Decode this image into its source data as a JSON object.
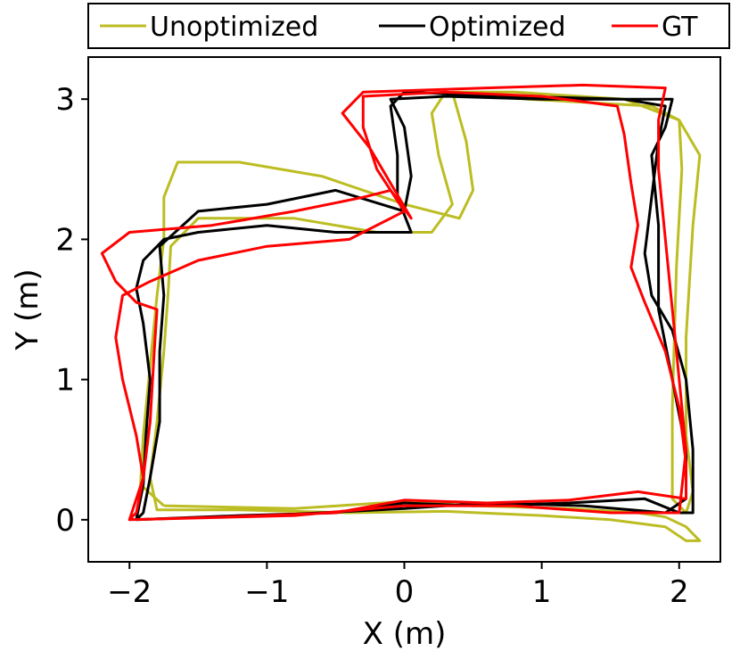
{
  "chart_data": {
    "type": "line",
    "title": "",
    "xlabel": "X (m)",
    "ylabel": "Y (m)",
    "xlim": [
      -2.3,
      2.3
    ],
    "ylim": [
      -0.3,
      3.3
    ],
    "xticks": [
      -2,
      -1,
      0,
      1,
      2
    ],
    "yticks": [
      0,
      1,
      2,
      3
    ],
    "xtick_labels": [
      "−2",
      "−1",
      "0",
      "1",
      "2"
    ],
    "ytick_labels": [
      "0",
      "1",
      "2",
      "3"
    ],
    "grid": false,
    "legend_position": "top",
    "series": [
      {
        "name": "Unoptimized",
        "color": "#bcbd22",
        "points": [
          [
            -1.75,
            0.1
          ],
          [
            -0.8,
            0.08
          ],
          [
            0.0,
            0.13
          ],
          [
            0.5,
            0.1
          ],
          [
            1.2,
            0.08
          ],
          [
            1.7,
            0.05
          ],
          [
            1.9,
            0.02
          ],
          [
            2.05,
            -0.05
          ],
          [
            2.15,
            -0.15
          ],
          [
            2.05,
            -0.15
          ],
          [
            1.9,
            -0.05
          ],
          [
            1.5,
            0.0
          ],
          [
            1.0,
            0.03
          ],
          [
            0.3,
            0.06
          ],
          [
            -0.4,
            0.05
          ],
          [
            -1.2,
            0.07
          ],
          [
            -1.8,
            0.07
          ],
          [
            -1.85,
            0.3
          ],
          [
            -1.8,
            0.7
          ],
          [
            -1.75,
            1.2
          ],
          [
            -1.72,
            1.6
          ],
          [
            -1.7,
            1.95
          ],
          [
            -1.5,
            2.15
          ],
          [
            -0.8,
            2.15
          ],
          [
            -0.2,
            2.05
          ],
          [
            0.2,
            2.05
          ],
          [
            0.35,
            2.25
          ],
          [
            0.25,
            2.6
          ],
          [
            0.2,
            2.9
          ],
          [
            0.3,
            3.05
          ],
          [
            0.9,
            3.0
          ],
          [
            1.8,
            2.95
          ],
          [
            2.0,
            2.85
          ],
          [
            2.15,
            2.6
          ],
          [
            2.1,
            2.1
          ],
          [
            2.05,
            1.3
          ],
          [
            2.05,
            0.6
          ],
          [
            2.1,
            0.2
          ],
          [
            2.05,
            0.05
          ],
          [
            1.95,
            0.15
          ],
          [
            1.95,
            0.8
          ],
          [
            1.98,
            1.8
          ],
          [
            2.02,
            2.5
          ],
          [
            2.0,
            2.85
          ],
          [
            1.6,
            3.0
          ],
          [
            0.8,
            3.05
          ],
          [
            0.35,
            3.05
          ],
          [
            0.45,
            2.7
          ],
          [
            0.5,
            2.35
          ],
          [
            0.4,
            2.15
          ],
          [
            0.0,
            2.25
          ],
          [
            -0.6,
            2.45
          ],
          [
            -1.2,
            2.55
          ],
          [
            -1.65,
            2.55
          ],
          [
            -1.75,
            2.3
          ],
          [
            -1.75,
            2.0
          ],
          [
            -1.8,
            1.6
          ],
          [
            -1.85,
            1.1
          ],
          [
            -1.9,
            0.6
          ],
          [
            -1.92,
            0.25
          ],
          [
            -1.75,
            0.1
          ]
        ]
      },
      {
        "name": "Optimized",
        "color": "#000000",
        "points": [
          [
            -1.95,
            0.0
          ],
          [
            -1.2,
            0.03
          ],
          [
            -0.5,
            0.05
          ],
          [
            0.0,
            0.12
          ],
          [
            0.5,
            0.1
          ],
          [
            1.2,
            0.12
          ],
          [
            1.75,
            0.15
          ],
          [
            2.0,
            0.05
          ],
          [
            2.1,
            0.05
          ],
          [
            2.1,
            0.5
          ],
          [
            2.05,
            1.0
          ],
          [
            1.95,
            1.35
          ],
          [
            1.8,
            1.6
          ],
          [
            1.75,
            1.9
          ],
          [
            1.8,
            2.3
          ],
          [
            1.85,
            2.7
          ],
          [
            1.9,
            2.95
          ],
          [
            1.6,
            3.0
          ],
          [
            0.8,
            3.02
          ],
          [
            0.0,
            3.05
          ],
          [
            -0.1,
            2.95
          ],
          [
            -0.05,
            2.6
          ],
          [
            -0.05,
            2.3
          ],
          [
            0.05,
            2.05
          ],
          [
            -0.5,
            2.05
          ],
          [
            -1.0,
            2.1
          ],
          [
            -1.5,
            2.05
          ],
          [
            -1.75,
            2.0
          ],
          [
            -1.9,
            1.85
          ],
          [
            -1.95,
            1.65
          ],
          [
            -1.9,
            1.4
          ],
          [
            -1.85,
            1.0
          ],
          [
            -1.88,
            0.6
          ],
          [
            -1.9,
            0.25
          ],
          [
            -1.95,
            0.0
          ],
          [
            -1.9,
            0.05
          ],
          [
            -1.85,
            0.3
          ],
          [
            -1.78,
            0.7
          ],
          [
            -1.78,
            1.2
          ],
          [
            -1.75,
            1.6
          ],
          [
            -1.78,
            1.95
          ],
          [
            -1.5,
            2.2
          ],
          [
            -1.0,
            2.25
          ],
          [
            -0.5,
            2.35
          ],
          [
            0.0,
            2.2
          ],
          [
            0.05,
            2.45
          ],
          [
            0.0,
            2.8
          ],
          [
            -0.1,
            3.0
          ],
          [
            0.3,
            3.02
          ],
          [
            1.0,
            3.0
          ],
          [
            1.95,
            3.0
          ],
          [
            1.9,
            2.8
          ],
          [
            1.8,
            2.6
          ],
          [
            1.85,
            2.1
          ],
          [
            1.85,
            1.5
          ],
          [
            1.95,
            1.0
          ],
          [
            2.05,
            0.5
          ],
          [
            2.05,
            0.15
          ],
          [
            1.9,
            0.05
          ],
          [
            1.3,
            0.1
          ],
          [
            0.6,
            0.12
          ],
          [
            0.0,
            0.08
          ],
          [
            -0.8,
            0.04
          ],
          [
            -1.95,
            0.0
          ]
        ]
      },
      {
        "name": "GT",
        "color": "#ff0000",
        "points": [
          [
            -2.0,
            0.0
          ],
          [
            -1.3,
            0.02
          ],
          [
            -0.5,
            0.05
          ],
          [
            0.0,
            0.14
          ],
          [
            0.6,
            0.12
          ],
          [
            1.2,
            0.14
          ],
          [
            1.7,
            0.2
          ],
          [
            2.05,
            0.15
          ],
          [
            2.05,
            0.4
          ],
          [
            2.0,
            0.8
          ],
          [
            1.9,
            1.2
          ],
          [
            1.75,
            1.55
          ],
          [
            1.65,
            1.8
          ],
          [
            1.7,
            2.1
          ],
          [
            1.65,
            2.4
          ],
          [
            1.6,
            2.75
          ],
          [
            1.55,
            2.95
          ],
          [
            1.0,
            3.02
          ],
          [
            0.3,
            3.05
          ],
          [
            -0.3,
            3.02
          ],
          [
            -0.3,
            2.8
          ],
          [
            -0.2,
            2.5
          ],
          [
            0.0,
            2.2
          ],
          [
            -0.4,
            2.0
          ],
          [
            -1.0,
            1.95
          ],
          [
            -1.5,
            1.85
          ],
          [
            -1.85,
            1.7
          ],
          [
            -2.05,
            1.6
          ],
          [
            -2.1,
            1.3
          ],
          [
            -2.05,
            1.0
          ],
          [
            -1.95,
            0.6
          ],
          [
            -1.9,
            0.3
          ],
          [
            -2.0,
            0.0
          ],
          [
            -1.95,
            0.05
          ],
          [
            -1.9,
            0.3
          ],
          [
            -1.85,
            0.7
          ],
          [
            -1.82,
            1.2
          ],
          [
            -1.8,
            1.5
          ],
          [
            -1.95,
            1.55
          ],
          [
            -2.1,
            1.7
          ],
          [
            -2.2,
            1.9
          ],
          [
            -2.0,
            2.05
          ],
          [
            -1.4,
            2.1
          ],
          [
            -0.8,
            2.2
          ],
          [
            -0.3,
            2.3
          ],
          [
            -0.1,
            2.35
          ],
          [
            0.05,
            2.15
          ],
          [
            -0.25,
            2.65
          ],
          [
            -0.45,
            2.9
          ],
          [
            -0.3,
            3.05
          ],
          [
            0.6,
            3.08
          ],
          [
            1.3,
            3.1
          ],
          [
            1.9,
            3.08
          ],
          [
            1.85,
            2.85
          ],
          [
            1.85,
            2.5
          ],
          [
            1.9,
            2.0
          ],
          [
            1.95,
            1.5
          ],
          [
            2.0,
            1.0
          ],
          [
            2.05,
            0.5
          ],
          [
            2.0,
            0.05
          ],
          [
            1.5,
            0.05
          ],
          [
            0.8,
            0.1
          ],
          [
            0.0,
            0.1
          ],
          [
            -0.8,
            0.03
          ],
          [
            -2.0,
            0.0
          ]
        ]
      }
    ]
  }
}
